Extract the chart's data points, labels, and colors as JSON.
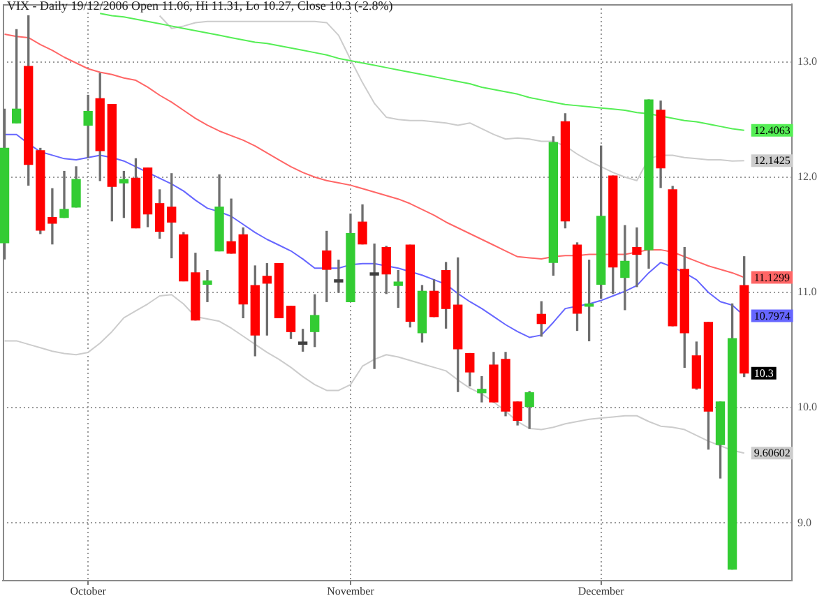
{
  "chart_data": {
    "type": "candlestick",
    "title": "VIX - Daily 19/12/2006 Open 11.06, Hi 11.31, Lo 10.27, Close 10.3 (-2.8%)",
    "categories": [
      null,
      null,
      null,
      null,
      null,
      null,
      null,
      "October",
      null,
      null,
      null,
      null,
      null,
      null,
      null,
      null,
      null,
      null,
      null,
      null,
      null,
      null,
      null,
      null,
      null,
      null,
      null,
      null,
      null,
      "November",
      null,
      null,
      null,
      null,
      null,
      null,
      null,
      null,
      null,
      null,
      null,
      null,
      null,
      null,
      null,
      null,
      null,
      null,
      null,
      null,
      "December",
      null,
      null,
      null,
      null,
      null,
      null,
      null,
      null,
      null,
      null,
      null,
      null
    ],
    "ohlc": [
      [
        11.43,
        12.59,
        11.29,
        12.25
      ],
      [
        12.47,
        13.28,
        12.47,
        12.59
      ],
      [
        12.96,
        13.4,
        11.93,
        12.11
      ],
      [
        12.23,
        12.25,
        11.51,
        11.54
      ],
      [
        11.65,
        11.9,
        11.42,
        11.6
      ],
      [
        11.65,
        12.05,
        11.65,
        11.72
      ],
      [
        11.74,
        12.09,
        11.74,
        11.98
      ],
      [
        12.45,
        12.71,
        12.17,
        12.57
      ],
      [
        12.68,
        12.9,
        11.97,
        12.23
      ],
      [
        12.63,
        12.63,
        11.62,
        11.92
      ],
      [
        11.95,
        12.05,
        11.65,
        11.98
      ],
      [
        11.99,
        12.16,
        11.56,
        11.56
      ],
      [
        12.08,
        12.08,
        11.57,
        11.68
      ],
      [
        11.77,
        11.89,
        11.47,
        11.53
      ],
      [
        11.74,
        12.03,
        11.3,
        11.61
      ],
      [
        11.5,
        11.52,
        11.1,
        11.1
      ],
      [
        11.17,
        11.34,
        10.76,
        10.76
      ],
      [
        11.07,
        11.19,
        10.92,
        11.1
      ],
      [
        11.36,
        12.02,
        11.36,
        11.74
      ],
      [
        11.44,
        11.81,
        11.34,
        11.34
      ],
      [
        11.5,
        11.56,
        10.78,
        10.9
      ],
      [
        11.06,
        11.23,
        10.45,
        10.63
      ],
      [
        11.14,
        11.25,
        10.63,
        11.08
      ],
      [
        11.25,
        11.25,
        10.78,
        10.78
      ],
      [
        10.88,
        10.88,
        10.6,
        10.66
      ],
      [
        10.57,
        10.68,
        10.49,
        10.55
      ],
      [
        10.66,
        10.98,
        10.53,
        10.8
      ],
      [
        11.36,
        11.53,
        10.92,
        11.2
      ],
      [
        11.11,
        11.28,
        11.0,
        11.09
      ],
      [
        10.92,
        11.68,
        10.92,
        11.51
      ],
      [
        11.61,
        11.76,
        11.42,
        11.42
      ],
      [
        11.17,
        11.42,
        10.34,
        11.15
      ],
      [
        11.39,
        11.4,
        10.99,
        11.16
      ],
      [
        11.06,
        11.19,
        10.87,
        11.09
      ],
      [
        11.41,
        11.41,
        10.7,
        10.75
      ],
      [
        10.65,
        11.06,
        10.57,
        11.01
      ],
      [
        11.01,
        11.11,
        10.79,
        10.79
      ],
      [
        11.19,
        11.26,
        10.69,
        10.86
      ],
      [
        10.89,
        11.3,
        10.14,
        10.51
      ],
      [
        10.47,
        10.47,
        10.19,
        10.31
      ],
      [
        10.13,
        10.27,
        10.05,
        10.16
      ],
      [
        10.37,
        10.48,
        10.05,
        10.05
      ],
      [
        10.42,
        10.48,
        9.93,
        9.97
      ],
      [
        10.05,
        10.05,
        9.85,
        9.89
      ],
      [
        10.01,
        10.14,
        9.82,
        10.13
      ],
      [
        10.81,
        10.92,
        10.62,
        10.73
      ],
      [
        11.26,
        12.35,
        11.15,
        12.3
      ],
      [
        12.48,
        12.55,
        11.56,
        11.62
      ],
      [
        11.41,
        11.43,
        10.67,
        10.82
      ],
      [
        10.88,
        11.28,
        10.58,
        10.9
      ],
      [
        11.07,
        12.27,
        10.95,
        11.66
      ],
      [
        12.01,
        12.01,
        10.99,
        11.22
      ],
      [
        11.13,
        11.58,
        10.85,
        11.27
      ],
      [
        11.39,
        11.56,
        11.05,
        11.33
      ],
      [
        11.37,
        12.67,
        11.21,
        12.67
      ],
      [
        12.58,
        12.66,
        11.91,
        12.08
      ],
      [
        11.89,
        11.92,
        10.71,
        10.71
      ],
      [
        11.2,
        11.39,
        10.35,
        10.65
      ],
      [
        10.45,
        10.57,
        10.16,
        10.17
      ],
      [
        10.74,
        10.74,
        9.64,
        9.97
      ],
      [
        9.68,
        10.05,
        9.39,
        10.05
      ],
      [
        8.6,
        10.9,
        8.6,
        10.6
      ],
      [
        11.06,
        11.31,
        10.27,
        10.3
      ]
    ],
    "colors": [
      "#33cc33",
      "#33cc33",
      "#ff0000",
      "#ff0000",
      "#ff0000",
      "#33cc33",
      "#33cc33",
      "#33cc33",
      "#ff0000",
      "#ff0000",
      "#33cc33",
      "#ff0000",
      "#ff0000",
      "#ff0000",
      "#ff0000",
      "#ff0000",
      "#ff0000",
      "#33cc33",
      "#33cc33",
      "#ff0000",
      "#ff0000",
      "#ff0000",
      "#ff0000",
      "#ff0000",
      "#ff0000",
      "#404040",
      "#33cc33",
      "#ff0000",
      "#404040",
      "#33cc33",
      "#ff0000",
      "#404040",
      "#ff0000",
      "#33cc33",
      "#ff0000",
      "#33cc33",
      "#ff0000",
      "#ff0000",
      "#ff0000",
      "#ff0000",
      "#33cc33",
      "#ff0000",
      "#ff0000",
      "#ff0000",
      "#33cc33",
      "#ff0000",
      "#33cc33",
      "#ff0000",
      "#ff0000",
      "#33cc33",
      "#33cc33",
      "#ff0000",
      "#33cc33",
      "#ff0000",
      "#33cc33",
      "#ff0000",
      "#ff0000",
      "#ff0000",
      "#ff0000",
      "#ff0000",
      "#33cc33",
      "#33cc33",
      "#ff0000"
    ],
    "value_labels": [
      null,
      null,
      null,
      null,
      null,
      null,
      null,
      null,
      null,
      null,
      null,
      null,
      null,
      null,
      null,
      null,
      null,
      null,
      null,
      null,
      null,
      null,
      null,
      null,
      null,
      null,
      null,
      null,
      null,
      null,
      null,
      null,
      null,
      null,
      null,
      null,
      null,
      null,
      null,
      null,
      null,
      null,
      null,
      null,
      null,
      null,
      null,
      null,
      null,
      null,
      null,
      null,
      null,
      null,
      null,
      null,
      null,
      null,
      null,
      null,
      null,
      null,
      "10.3"
    ],
    "series": [
      {
        "type": "line",
        "color": "#55ee55",
        "values": [
          null,
          null,
          null,
          null,
          null,
          null,
          null,
          null,
          13.42,
          13.4,
          13.39,
          13.37,
          13.35,
          13.33,
          13.31,
          13.29,
          13.27,
          13.25,
          13.23,
          13.21,
          13.19,
          13.17,
          13.16,
          13.14,
          13.12,
          13.1,
          13.08,
          13.06,
          13.03,
          13.01,
          12.99,
          12.97,
          12.95,
          12.93,
          12.91,
          12.89,
          12.87,
          12.85,
          12.83,
          12.81,
          12.78,
          12.76,
          12.74,
          12.72,
          12.69,
          12.67,
          12.65,
          12.63,
          12.62,
          12.61,
          12.6,
          12.59,
          12.58,
          12.56,
          12.55,
          12.53,
          12.51,
          12.49,
          12.48,
          12.46,
          12.44,
          12.42,
          12.4063
        ],
        "value_labels": [
          null,
          null,
          null,
          null,
          null,
          null,
          null,
          null,
          null,
          null,
          null,
          null,
          null,
          null,
          null,
          null,
          null,
          null,
          null,
          null,
          null,
          null,
          null,
          null,
          null,
          null,
          null,
          null,
          null,
          null,
          null,
          null,
          null,
          null,
          null,
          null,
          null,
          null,
          null,
          null,
          null,
          null,
          null,
          null,
          null,
          null,
          null,
          null,
          null,
          null,
          null,
          null,
          null,
          null,
          null,
          null,
          null,
          null,
          null,
          null,
          null,
          null,
          "12.4063"
        ]
      },
      {
        "type": "line",
        "color": "#ff6666",
        "values": [
          13.24,
          13.22,
          13.21,
          13.15,
          13.1,
          13.04,
          12.99,
          12.94,
          12.91,
          12.89,
          12.86,
          12.84,
          12.78,
          12.71,
          12.65,
          12.58,
          12.51,
          12.45,
          12.4,
          12.36,
          12.32,
          12.27,
          12.21,
          12.15,
          12.09,
          12.04,
          12.0,
          11.97,
          11.95,
          11.93,
          11.9,
          11.87,
          11.84,
          11.81,
          11.77,
          11.72,
          11.67,
          11.61,
          11.56,
          11.51,
          11.46,
          11.41,
          11.36,
          11.31,
          11.3,
          11.29,
          11.31,
          11.32,
          11.32,
          11.33,
          11.33,
          11.33,
          11.33,
          11.35,
          11.37,
          11.37,
          11.35,
          11.31,
          11.27,
          11.23,
          11.2,
          11.17,
          11.1299
        ],
        "value_labels": [
          null,
          null,
          null,
          null,
          null,
          null,
          null,
          null,
          null,
          null,
          null,
          null,
          null,
          null,
          null,
          null,
          null,
          null,
          null,
          null,
          null,
          null,
          null,
          null,
          null,
          null,
          null,
          null,
          null,
          null,
          null,
          null,
          null,
          null,
          null,
          null,
          null,
          null,
          null,
          null,
          null,
          null,
          null,
          null,
          null,
          null,
          null,
          null,
          null,
          null,
          null,
          null,
          null,
          null,
          null,
          null,
          null,
          null,
          null,
          null,
          null,
          null,
          "11.1299"
        ]
      },
      {
        "type": "line",
        "color": "#6666ff",
        "values": [
          12.37,
          12.37,
          12.29,
          12.22,
          12.19,
          12.16,
          12.15,
          12.17,
          12.19,
          12.17,
          12.14,
          12.09,
          12.04,
          11.99,
          11.94,
          11.88,
          11.8,
          11.73,
          11.7,
          11.66,
          11.59,
          11.52,
          11.46,
          11.41,
          11.36,
          11.29,
          11.21,
          11.21,
          11.21,
          11.24,
          11.25,
          11.25,
          11.23,
          11.21,
          11.18,
          11.15,
          11.11,
          11.07,
          10.99,
          10.92,
          10.86,
          10.79,
          10.72,
          10.66,
          10.61,
          10.63,
          10.74,
          10.86,
          10.88,
          10.9,
          10.93,
          10.97,
          11.01,
          11.06,
          11.17,
          11.26,
          11.22,
          11.17,
          11.11,
          11.0,
          10.92,
          10.89,
          10.7974
        ],
        "value_labels": [
          null,
          null,
          null,
          null,
          null,
          null,
          null,
          null,
          null,
          null,
          null,
          null,
          null,
          null,
          null,
          null,
          null,
          null,
          null,
          null,
          null,
          null,
          null,
          null,
          null,
          null,
          null,
          null,
          null,
          null,
          null,
          null,
          null,
          null,
          null,
          null,
          null,
          null,
          null,
          null,
          null,
          null,
          null,
          null,
          null,
          null,
          null,
          null,
          null,
          null,
          null,
          null,
          null,
          null,
          null,
          null,
          null,
          null,
          null,
          null,
          null,
          null,
          "10.7974"
        ]
      },
      {
        "type": "line",
        "color": "#cccccc",
        "values": [
          null,
          null,
          null,
          null,
          null,
          null,
          null,
          null,
          null,
          null,
          null,
          null,
          null,
          13.4,
          13.29,
          13.31,
          13.34,
          13.35,
          13.35,
          13.35,
          13.35,
          13.35,
          13.35,
          13.35,
          13.35,
          13.35,
          13.35,
          13.34,
          13.23,
          13.02,
          12.82,
          12.64,
          12.52,
          12.5,
          12.49,
          12.49,
          12.48,
          12.47,
          12.45,
          12.47,
          12.42,
          12.37,
          12.33,
          12.34,
          12.33,
          12.31,
          12.31,
          12.27,
          12.2,
          12.14,
          12.09,
          12.04,
          12.0,
          11.97,
          12.16,
          12.19,
          12.19,
          12.17,
          12.16,
          12.15,
          12.15,
          12.14,
          12.1425
        ],
        "value_labels": [
          null,
          null,
          null,
          null,
          null,
          null,
          null,
          null,
          null,
          null,
          null,
          null,
          null,
          null,
          null,
          null,
          null,
          null,
          null,
          null,
          null,
          null,
          null,
          null,
          null,
          null,
          null,
          null,
          null,
          null,
          null,
          null,
          null,
          null,
          null,
          null,
          null,
          null,
          null,
          null,
          null,
          null,
          null,
          null,
          null,
          null,
          null,
          null,
          null,
          null,
          null,
          null,
          null,
          null,
          null,
          null,
          null,
          null,
          null,
          null,
          null,
          null,
          "12.1425"
        ]
      },
      {
        "type": "line",
        "color": "#cccccc",
        "values": [
          10.58,
          10.58,
          10.55,
          10.52,
          10.49,
          10.47,
          10.46,
          10.48,
          10.56,
          10.66,
          10.78,
          10.84,
          10.9,
          10.97,
          10.98,
          10.9,
          10.79,
          10.77,
          10.75,
          10.69,
          10.62,
          10.55,
          10.48,
          10.42,
          10.35,
          10.27,
          10.2,
          10.15,
          10.15,
          10.2,
          10.36,
          10.42,
          10.46,
          10.44,
          10.41,
          10.38,
          10.35,
          10.32,
          10.24,
          10.17,
          10.12,
          10.05,
          9.97,
          9.88,
          9.82,
          9.81,
          9.83,
          9.86,
          9.88,
          9.9,
          9.91,
          9.92,
          9.93,
          9.93,
          9.88,
          9.84,
          9.83,
          9.81,
          9.76,
          9.71,
          9.67,
          9.63,
          9.60602
        ],
        "value_labels": [
          null,
          null,
          null,
          null,
          null,
          null,
          null,
          null,
          null,
          null,
          null,
          null,
          null,
          null,
          null,
          null,
          null,
          null,
          null,
          null,
          null,
          null,
          null,
          null,
          null,
          null,
          null,
          null,
          null,
          null,
          null,
          null,
          null,
          null,
          null,
          null,
          null,
          null,
          null,
          null,
          null,
          null,
          null,
          null,
          null,
          null,
          null,
          null,
          null,
          null,
          null,
          null,
          null,
          null,
          null,
          null,
          null,
          null,
          null,
          null,
          null,
          null,
          "9.60602"
        ]
      }
    ],
    "ylim": [
      8.5,
      13.5
    ],
    "yticks": [
      {
        "value": 9,
        "label": "9.0"
      },
      {
        "value": 10,
        "label": "10.0"
      },
      {
        "value": 11,
        "label": "11.0"
      },
      {
        "value": 12,
        "label": "12.0"
      },
      {
        "value": 13,
        "label": "13.0"
      }
    ],
    "grid": true,
    "marker": "none"
  }
}
